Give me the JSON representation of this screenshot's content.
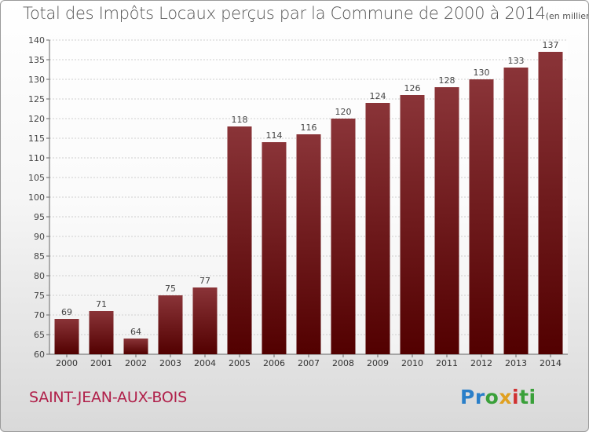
{
  "header": {
    "title": "Total des Impôts Locaux perçus par la Commune de 2000 à 2014",
    "unit_note": "(en milliers d'€)"
  },
  "footer": {
    "commune": "SAINT-JEAN-AUX-BOIS",
    "brand": "Proxiti"
  },
  "colors": {
    "bar_top": "#8a3438",
    "bar_bottom": "#520000",
    "commune_text": "#b0204a"
  },
  "chart_data": {
    "type": "bar",
    "title": "Total des Impôts Locaux perçus par la Commune de 2000 à 2014",
    "ylabel": "en milliers d'€",
    "xlabel": "",
    "categories": [
      "2000",
      "2001",
      "2002",
      "2003",
      "2004",
      "2005",
      "2006",
      "2007",
      "2008",
      "2009",
      "2010",
      "2011",
      "2012",
      "2013",
      "2014"
    ],
    "values": [
      69,
      71,
      64,
      75,
      77,
      118,
      114,
      116,
      120,
      124,
      126,
      128,
      130,
      133,
      137
    ],
    "ylim": [
      60,
      140
    ],
    "yticks": [
      60,
      65,
      70,
      75,
      80,
      85,
      90,
      95,
      100,
      105,
      110,
      115,
      120,
      125,
      130,
      135,
      140
    ],
    "grid": true,
    "data_labels": true
  }
}
